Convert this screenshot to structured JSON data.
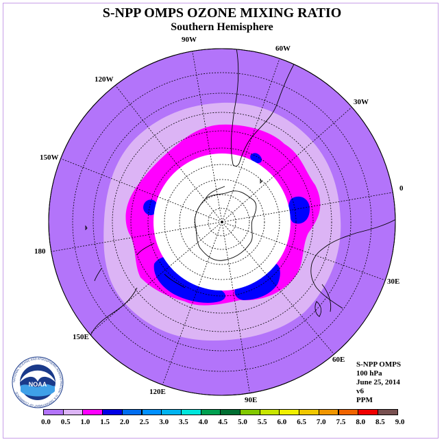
{
  "header": {
    "title": "S-NPP OMPS OZONE MIXING RATIO",
    "subtitle": "Southern Hemisphere"
  },
  "map": {
    "projection": "south-polar-stereographic",
    "longitude_labels": [
      "90W",
      "60W",
      "30W",
      "0",
      "30E",
      "60E",
      "90E",
      "120E",
      "150E",
      "180",
      "150W",
      "120W"
    ],
    "bands": [
      {
        "range": "0.5-1.0",
        "color": "#dcb4f5"
      },
      {
        "range": "1.0-1.5",
        "color": "#ff00ff"
      },
      {
        "range": "1.5-2.0",
        "color": "#0000ff"
      }
    ],
    "background_range": "0.0-0.5",
    "background_color": "#b374fa",
    "polar_no_data_color": "#ffffff"
  },
  "info": {
    "instrument": "S-NPP OMPS",
    "level": "100 hPa",
    "date": "June 25, 2014",
    "version": "v6",
    "units": "PPM"
  },
  "legend": {
    "labels": [
      "0.0",
      "0.5",
      "1.0",
      "1.5",
      "2.0",
      "2.5",
      "3.0",
      "3.5",
      "4.0",
      "4.5",
      "5.0",
      "5.5",
      "6.0",
      "6.5",
      "7.0",
      "7.5",
      "8.0",
      "8.5",
      "9.0"
    ],
    "colors": [
      "#b374fa",
      "#dcb4f5",
      "#ff00ff",
      "#0000e6",
      "#006ef0",
      "#0090ff",
      "#00b4f0",
      "#00e6dc",
      "#00a050",
      "#006e32",
      "#82c800",
      "#c8e600",
      "#f0f000",
      "#f0c800",
      "#f09600",
      "#f06400",
      "#f00000",
      "#785050"
    ]
  },
  "logo": {
    "name": "NOAA",
    "ring_text": "NATIONAL OCEANIC AND ATMOSPHERIC ADMINISTRATION · U.S. DEPARTMENT OF COMMERCE"
  }
}
